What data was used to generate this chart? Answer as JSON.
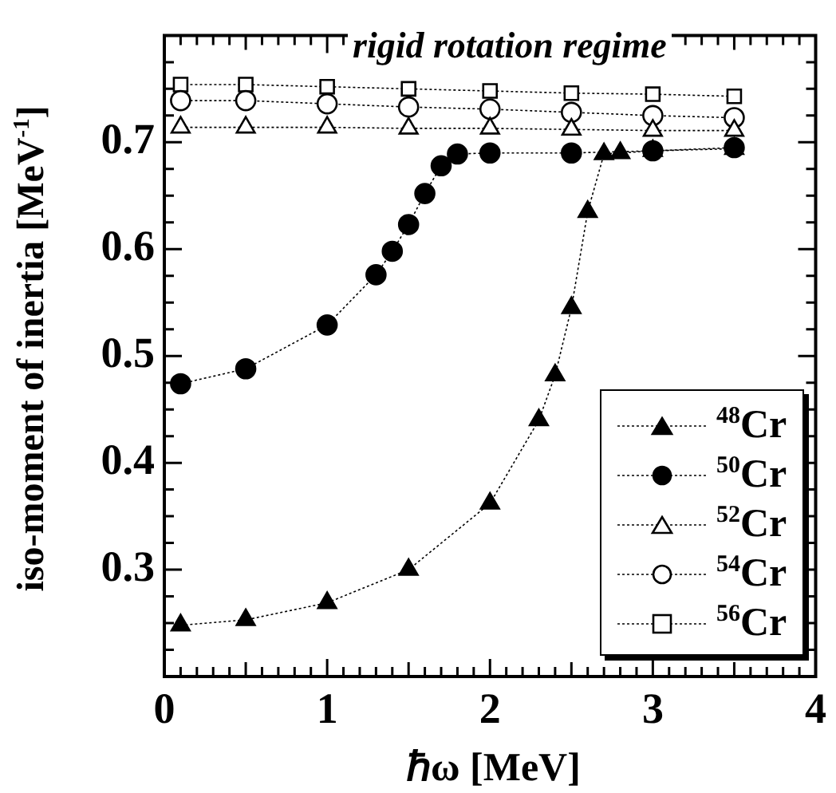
{
  "chart_data": {
    "type": "line",
    "xlabel": "ℏω [MeV]",
    "ylabel": "iso-moment of inertia [MeV$^{-1}$]",
    "annotations": [
      "rigid rotation regime"
    ],
    "xlim": [
      0,
      4
    ],
    "ylim": [
      0.2,
      0.8
    ],
    "xticks": [
      0,
      {
        "value": 0.1,
        "label": null
      },
      {
        "value": 0.2,
        "label": null
      },
      {
        "value": 0.3,
        "label": null
      },
      {
        "value": 0.4,
        "label": null
      },
      {
        "value": 0.5,
        "label": null
      },
      {
        "value": 0.6,
        "label": null
      },
      {
        "value": 0.7,
        "label": null
      },
      {
        "value": 0.8,
        "label": null
      },
      {
        "value": 0.9,
        "label": null
      },
      1,
      {
        "value": 1.1,
        "label": null
      },
      {
        "value": 1.2,
        "label": null
      },
      {
        "value": 1.3,
        "label": null
      },
      {
        "value": 1.4,
        "label": null
      },
      {
        "value": 1.5,
        "label": null
      },
      {
        "value": 1.6,
        "label": null
      },
      {
        "value": 1.7,
        "label": null
      },
      {
        "value": 1.8,
        "label": null
      },
      {
        "value": 1.9,
        "label": null
      },
      2,
      {
        "value": 2.1,
        "label": null
      },
      {
        "value": 2.2,
        "label": null
      },
      {
        "value": 2.3,
        "label": null
      },
      {
        "value": 2.4,
        "label": null
      },
      {
        "value": 2.5,
        "label": null
      },
      {
        "value": 2.6,
        "label": null
      },
      {
        "value": 2.7,
        "label": null
      },
      {
        "value": 2.8,
        "label": null
      },
      {
        "value": 2.9,
        "label": null
      },
      3,
      {
        "value": 3.1,
        "label": null
      },
      {
        "value": 3.2,
        "label": null
      },
      {
        "value": 3.3,
        "label": null
      },
      {
        "value": 3.4,
        "label": null
      },
      {
        "value": 3.5,
        "label": null
      },
      {
        "value": 3.6,
        "label": null
      },
      {
        "value": 3.7,
        "label": null
      },
      {
        "value": 3.8,
        "label": null
      },
      {
        "value": 3.9,
        "label": null
      },
      4
    ],
    "yticks": [
      {
        "value": 0.2,
        "label": null
      },
      {
        "value": 0.225,
        "label": null
      },
      {
        "value": 0.25,
        "label": null
      },
      {
        "value": 0.275,
        "label": null
      },
      0.3,
      {
        "value": 0.325,
        "label": null
      },
      {
        "value": 0.35,
        "label": null
      },
      {
        "value": 0.375,
        "label": null
      },
      0.4,
      {
        "value": 0.425,
        "label": null
      },
      {
        "value": 0.45,
        "label": null
      },
      {
        "value": 0.475,
        "label": null
      },
      0.5,
      {
        "value": 0.525,
        "label": null
      },
      {
        "value": 0.55,
        "label": null
      },
      {
        "value": 0.575,
        "label": null
      },
      0.6,
      {
        "value": 0.625,
        "label": null
      },
      {
        "value": 0.65,
        "label": null
      },
      {
        "value": 0.675,
        "label": null
      },
      0.7,
      {
        "value": 0.725,
        "label": null
      },
      {
        "value": 0.75,
        "label": null
      },
      {
        "value": 0.775,
        "label": null
      },
      {
        "value": 0.8,
        "label": null
      }
    ],
    "grid": false,
    "legend": "bottom right",
    "line_style": "dotted",
    "series": [
      {
        "name": "$^{48}$Cr",
        "color": "#000000",
        "marker": "triangle",
        "x": [
          0.1,
          0.5,
          1,
          1.5,
          2,
          2.3,
          2.4,
          2.5,
          2.6,
          2.7,
          2.8,
          3,
          3.5
        ],
        "values": [
          0.248,
          0.253,
          0.269,
          0.3,
          0.362,
          0.44,
          0.482,
          0.545,
          0.635,
          0.689,
          0.69,
          0.692,
          0.694
        ]
      },
      {
        "name": "$^{50}$Cr",
        "color": "#000000",
        "marker": "circle",
        "x": [
          0.1,
          0.5,
          1,
          1.3,
          1.4,
          1.5,
          1.6,
          1.7,
          1.8,
          2,
          2.5,
          3,
          3.5
        ],
        "values": [
          0.474,
          0.488,
          0.529,
          0.576,
          0.598,
          0.623,
          0.652,
          0.678,
          0.689,
          0.69,
          0.69,
          0.692,
          0.695
        ]
      },
      {
        "name": "$^{52}$Cr",
        "color": "#000000",
        "marker": "triangle",
        "x": [
          0.1,
          0.5,
          1,
          1.5,
          2,
          2.5,
          3,
          3.5
        ],
        "values": [
          0.714,
          0.714,
          0.714,
          0.713,
          0.713,
          0.712,
          0.711,
          0.711
        ]
      },
      {
        "name": "$^{54}$Cr",
        "color": "#000000",
        "marker": "circle",
        "x": [
          0.1,
          0.5,
          1,
          1.5,
          2,
          2.5,
          3,
          3.5
        ],
        "values": [
          0.739,
          0.739,
          0.736,
          0.733,
          0.731,
          0.728,
          0.725,
          0.723
        ]
      },
      {
        "name": "$^{56}$Cr",
        "color": "#000000",
        "marker": "square",
        "x": [
          0.1,
          0.5,
          1,
          1.5,
          2,
          2.5,
          3,
          3.5
        ],
        "values": [
          0.754,
          0.754,
          0.752,
          0.75,
          0.748,
          0.746,
          0.745,
          0.743
        ]
      }
    ]
  }
}
